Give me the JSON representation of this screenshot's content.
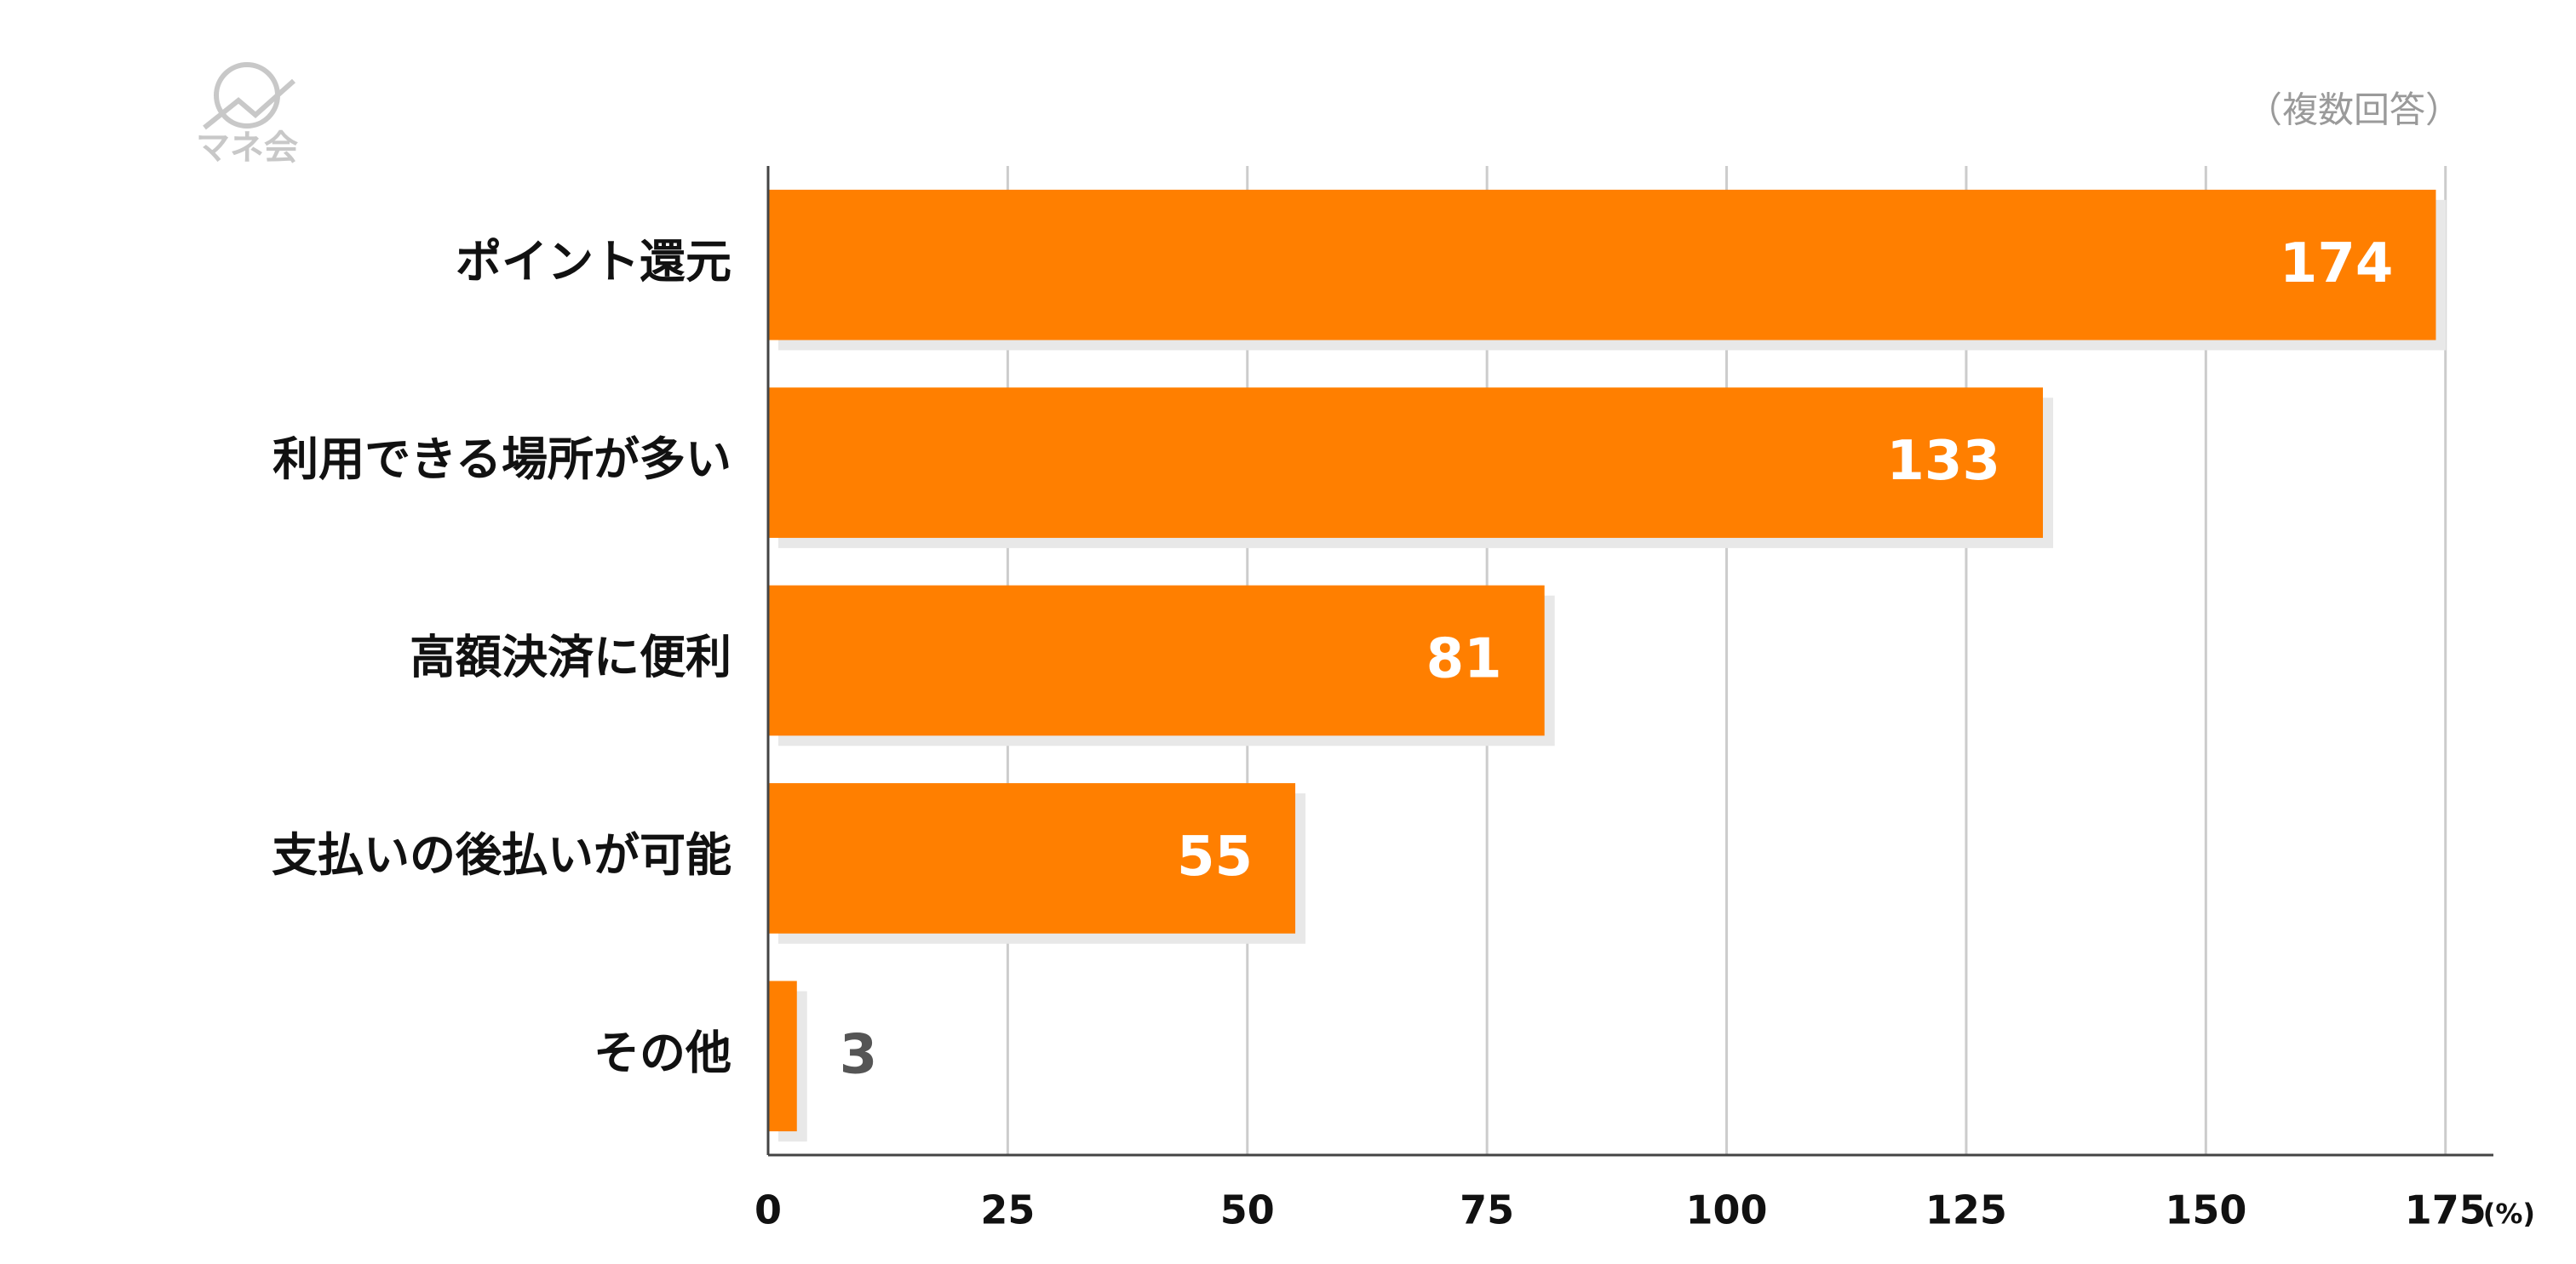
{
  "logo": "マネ会",
  "chart_data": {
    "type": "bar",
    "orientation": "horizontal",
    "note": "（複数回答）",
    "x_unit_label": "(%)",
    "categories": [
      "ポイント還元",
      "利用できる場所が多い",
      "高額決済に便利",
      "支払いの後払いが可能",
      "その他"
    ],
    "values": [
      174,
      133,
      81,
      55,
      3
    ],
    "color": "#ff7f00",
    "xlim": [
      0,
      180
    ],
    "xticks": [
      0,
      25,
      50,
      75,
      100,
      125,
      150,
      175
    ],
    "grid": true
  }
}
